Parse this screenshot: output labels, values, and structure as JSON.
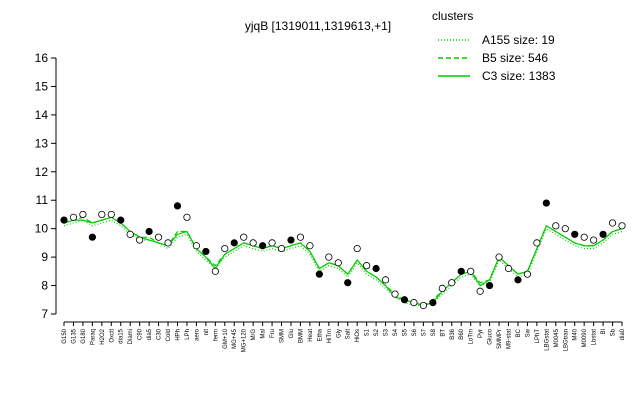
{
  "chart_data": {
    "type": "line",
    "title": "yjqB [1319011,1319613,+1]",
    "legend_title": "clusters",
    "categories": [
      "G150",
      "G135",
      "G180",
      "Paraq",
      "H2O2",
      "Oxctl",
      "dia15",
      "Diami",
      "C90",
      "dia5",
      "C30",
      "Cold",
      "HPh",
      "LPh",
      "aero",
      "nit",
      "ferm",
      "GM+10",
      "MG+45",
      "MG+120",
      "M/G",
      "Mal",
      "Fru",
      "SMM",
      "Glu",
      "BMM",
      "Heat",
      "Etha",
      "HiTm",
      "Gly",
      "Salt",
      "HiOs",
      "S1",
      "S2",
      "S3",
      "S4",
      "S5",
      "S6",
      "S7",
      "S8",
      "BT",
      "B36",
      "B60",
      "LoTm",
      "Pyr",
      "Gluco",
      "SMMPr",
      "M9-stat",
      "BC",
      "Sw",
      "LPhT",
      "LBGstat",
      "M0045",
      "LBGtran",
      "M40",
      "M0090",
      "Lbstat",
      "Bl",
      "Sb",
      "dia0"
    ],
    "values": [
      10.3,
      10.4,
      10.5,
      9.7,
      10.5,
      10.5,
      10.3,
      9.8,
      9.6,
      9.9,
      9.7,
      9.5,
      10.8,
      10.4,
      9.4,
      9.2,
      8.5,
      9.3,
      9.5,
      9.7,
      9.5,
      9.4,
      9.5,
      9.3,
      9.6,
      9.7,
      9.4,
      8.4,
      9.0,
      8.8,
      8.1,
      9.3,
      8.7,
      8.6,
      8.2,
      7.7,
      7.5,
      7.4,
      7.3,
      7.4,
      7.9,
      8.1,
      8.5,
      8.5,
      7.8,
      8.0,
      9.0,
      8.6,
      8.2,
      8.4,
      9.5,
      10.9,
      10.1,
      10.0,
      9.8,
      9.7,
      9.6,
      9.8,
      10.2,
      10.1
    ],
    "series": [
      {
        "name": "A155 size: 19",
        "color": "#00cc00",
        "dash": "1,2",
        "values": [
          10.1,
          10.2,
          10.3,
          10.1,
          10.2,
          10.3,
          10.1,
          9.8,
          9.6,
          9.6,
          9.5,
          9.3,
          9.7,
          9.8,
          9.2,
          8.9,
          8.6,
          9.0,
          9.2,
          9.4,
          9.3,
          9.2,
          9.3,
          9.2,
          9.3,
          9.4,
          9.1,
          8.5,
          8.7,
          8.6,
          8.3,
          8.8,
          8.4,
          8.2,
          7.9,
          7.6,
          7.4,
          7.3,
          7.3,
          7.4,
          7.7,
          8.0,
          8.3,
          8.4,
          8.0,
          8.1,
          8.9,
          8.6,
          8.3,
          8.4,
          9.2,
          10.0,
          9.8,
          9.6,
          9.4,
          9.3,
          9.3,
          9.5,
          9.8,
          9.9
        ]
      },
      {
        "name": "B5 size: 546",
        "color": "#00cc00",
        "dash": "5,3",
        "values": [
          10.2,
          10.3,
          10.4,
          10.2,
          10.3,
          10.4,
          10.2,
          9.9,
          9.7,
          9.7,
          9.5,
          9.4,
          9.9,
          9.9,
          9.3,
          9.0,
          8.7,
          9.1,
          9.3,
          9.5,
          9.4,
          9.3,
          9.4,
          9.3,
          9.4,
          9.5,
          9.2,
          8.6,
          8.8,
          8.7,
          8.4,
          8.9,
          8.5,
          8.3,
          8.0,
          7.7,
          7.5,
          7.4,
          7.3,
          7.5,
          7.8,
          8.1,
          8.4,
          8.5,
          8.1,
          8.2,
          9.0,
          8.7,
          8.4,
          8.5,
          9.3,
          10.1,
          9.9,
          9.7,
          9.5,
          9.4,
          9.4,
          9.6,
          9.9,
          10.0
        ]
      },
      {
        "name": "C3 size: 1383",
        "color": "#00cc00",
        "dash": "",
        "values": [
          10.2,
          10.3,
          10.3,
          10.2,
          10.3,
          10.4,
          10.2,
          9.9,
          9.7,
          9.6,
          9.5,
          9.4,
          9.8,
          9.9,
          9.3,
          9.0,
          8.6,
          9.1,
          9.3,
          9.5,
          9.4,
          9.3,
          9.4,
          9.3,
          9.4,
          9.5,
          9.2,
          8.6,
          8.8,
          8.7,
          8.4,
          8.9,
          8.5,
          8.3,
          8.0,
          7.6,
          7.5,
          7.4,
          7.3,
          7.4,
          7.8,
          8.1,
          8.4,
          8.5,
          8.0,
          8.2,
          9.0,
          8.7,
          8.4,
          8.5,
          9.3,
          10.1,
          9.9,
          9.7,
          9.5,
          9.4,
          9.4,
          9.6,
          9.9,
          10.0
        ]
      }
    ],
    "ylim": [
      7,
      16
    ],
    "yticks": [
      7,
      8,
      9,
      10,
      11,
      12,
      13,
      14,
      15,
      16
    ]
  }
}
